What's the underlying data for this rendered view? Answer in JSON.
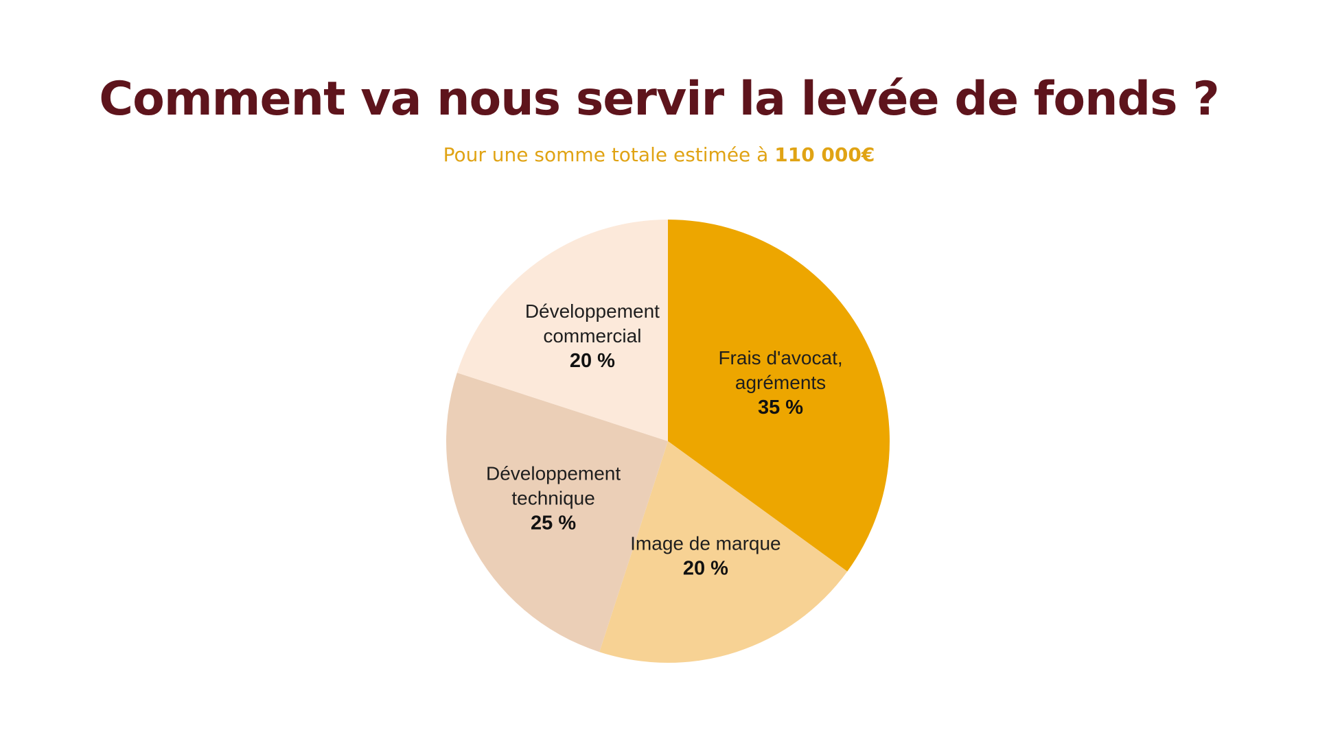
{
  "header": {
    "title": "Comment va nous servir la levée de fonds ?",
    "subtitle_prefix": "Pour une somme totale estimée à ",
    "subtitle_amount": "110 000€"
  },
  "chart_data": {
    "type": "pie",
    "title": "Comment va nous servir la levée de fonds ?",
    "start_angle_deg": 0,
    "direction": "clockwise",
    "slices": [
      {
        "lines": [
          "Frais d'avocat,",
          "agréments"
        ],
        "value": 35,
        "value_label": "35 %",
        "color": "#eda600"
      },
      {
        "lines": [
          "Image de marque"
        ],
        "value": 20,
        "value_label": "20 %",
        "color": "#f7d294"
      },
      {
        "lines": [
          "Développement",
          "technique"
        ],
        "value": 25,
        "value_label": "25 %",
        "color": "#ebcfb7"
      },
      {
        "lines": [
          "Développement",
          "commercial"
        ],
        "value": 20,
        "value_label": "20 %",
        "color": "#fce9da"
      }
    ]
  }
}
